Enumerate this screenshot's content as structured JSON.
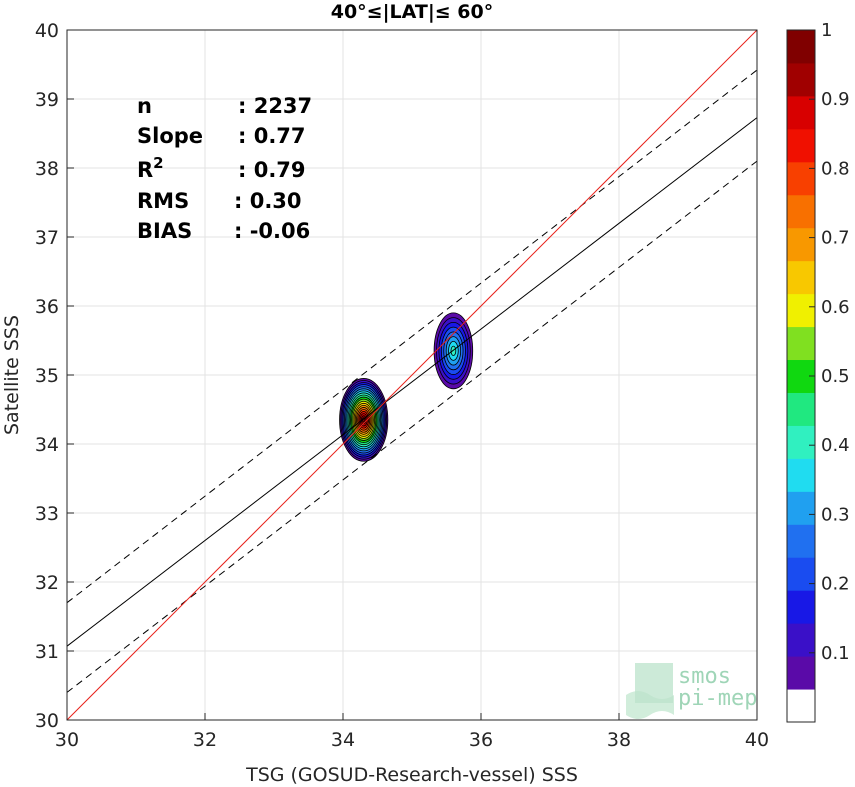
{
  "chart_data": {
    "type": "scatter",
    "title": "40°≤|LAT|≤ 60°",
    "xlabel": "TSG (GOSUD-Research-vessel) SSS",
    "ylabel": "Satellite SSS",
    "xlim": [
      30,
      40
    ],
    "ylim": [
      30,
      40
    ],
    "x_ticks": [
      "30",
      "32",
      "34",
      "36",
      "38",
      "40"
    ],
    "y_ticks": [
      "30",
      "31",
      "32",
      "33",
      "34",
      "35",
      "36",
      "37",
      "38",
      "39",
      "40"
    ],
    "grid": true,
    "stats": [
      {
        "label": "n",
        "sep": ":",
        "value": "2237"
      },
      {
        "label": "Slope",
        "sep": ":",
        "value": "0.77"
      },
      {
        "label": "R",
        "sup": "2",
        "sep": ":",
        "value": "0.79"
      },
      {
        "label": "RMS",
        "sep": ":",
        "value": "0.30"
      },
      {
        "label": "BIAS",
        "sep": ":",
        "value": "-0.06"
      }
    ],
    "lines": {
      "identity": {
        "color": "#e8211b",
        "x": [
          30,
          40
        ],
        "y": [
          30,
          40
        ]
      },
      "regression": {
        "color": "#000000",
        "x": [
          30,
          40
        ],
        "y": [
          31.07,
          38.73
        ]
      },
      "upper_bound": {
        "color": "#000000",
        "style": "dashed",
        "x": [
          30,
          40
        ],
        "y": [
          31.7,
          39.42
        ]
      },
      "lower_bound": {
        "color": "#000000",
        "style": "dashed",
        "x": [
          30,
          40
        ],
        "y": [
          30.4,
          38.1
        ]
      }
    },
    "density_clusters": [
      {
        "center": [
          34.3,
          34.35
        ],
        "rx": 0.35,
        "ry": 0.6,
        "peak": 1.0
      },
      {
        "center": [
          35.6,
          35.35
        ],
        "rx": 0.28,
        "ry": 0.55,
        "peak": 0.4
      }
    ],
    "colorbar": {
      "range": [
        0,
        1
      ],
      "tick_labels": [
        "0.1",
        "0.2",
        "0.3",
        "0.4",
        "0.5",
        "0.6",
        "0.7",
        "0.8",
        "0.9",
        "1"
      ],
      "tick_values": [
        0.1,
        0.2,
        0.3,
        0.4,
        0.5,
        0.6,
        0.7,
        0.8,
        0.9,
        1.0
      ],
      "colors": [
        "#ffffff",
        "#5a0aa8",
        "#3a10c8",
        "#1818e6",
        "#1a4cf0",
        "#2070f0",
        "#20a0f0",
        "#20dcf0",
        "#30f0c0",
        "#20e880",
        "#10d810",
        "#80e020",
        "#f0f000",
        "#f8c800",
        "#f89800",
        "#f87000",
        "#f84000",
        "#f01000",
        "#d80000",
        "#a00000",
        "#800000"
      ]
    }
  },
  "logo": {
    "line1": "smos",
    "line2": "pi-mep"
  }
}
